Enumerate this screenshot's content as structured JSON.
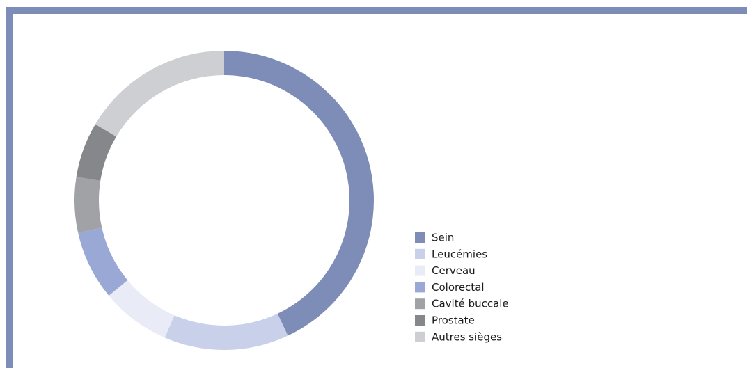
{
  "chart_data": {
    "type": "donut",
    "categories": [
      "Sein",
      "Leucémies",
      "Cerveau",
      "Colorectal",
      "Cavité buccale",
      "Prostate",
      "Autres sièges"
    ],
    "values": [
      43,
      13.5,
      7.5,
      7.5,
      6,
      6,
      16.5
    ],
    "colors": [
      "#7d8db8",
      "#c8d0ea",
      "#e9ecf6",
      "#9aa8d6",
      "#a0a2a6",
      "#85878b",
      "#cdcfd3"
    ],
    "legend": "right"
  }
}
